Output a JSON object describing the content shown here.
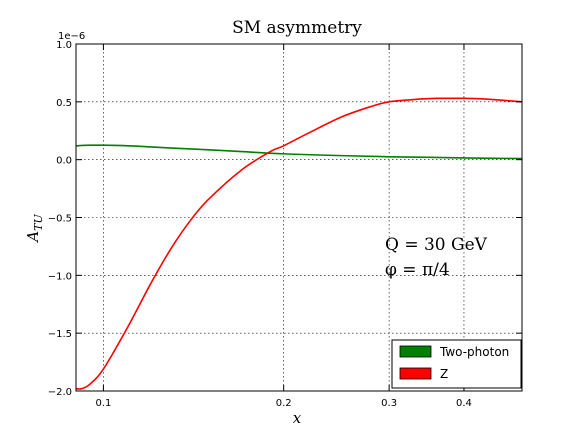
{
  "chart_data": {
    "type": "line",
    "title": "SM asymmetry",
    "xlabel": "x",
    "ylabel": "A_TU",
    "ylabel_main": "A",
    "ylabel_sub": "TU",
    "y_scale_label": "1e−6",
    "xscale": "log",
    "xlim": [
      0.09,
      0.5
    ],
    "ylim": [
      -2.0,
      1.0
    ],
    "grid": true,
    "legend_position": "lower-right",
    "x_ticks": [
      {
        "value": 0.1,
        "label": "0.1"
      },
      {
        "value": 0.2,
        "label": "0.2"
      },
      {
        "value": 0.3,
        "label": "0.3"
      },
      {
        "value": 0.4,
        "label": "0.4"
      }
    ],
    "y_ticks": [
      {
        "value": 1.0,
        "label": "1.0"
      },
      {
        "value": 0.5,
        "label": "0.5"
      },
      {
        "value": 0.0,
        "label": "0.0"
      },
      {
        "value": -0.5,
        "label": "−0.5"
      },
      {
        "value": -1.0,
        "label": "−1.0"
      },
      {
        "value": -1.5,
        "label": "−1.5"
      },
      {
        "value": -2.0,
        "label": "−2.0"
      }
    ],
    "annotations": [
      "Q = 30 GeV",
      "φ = π/4"
    ],
    "series": [
      {
        "name": "Two-photon",
        "color": "#008000",
        "x": [
          0.09,
          0.095,
          0.1,
          0.11,
          0.12,
          0.13,
          0.15,
          0.17,
          0.2,
          0.25,
          0.3,
          0.35,
          0.4,
          0.45,
          0.5
        ],
        "y": [
          0.12,
          0.125,
          0.125,
          0.12,
          0.11,
          0.1,
          0.085,
          0.07,
          0.05,
          0.035,
          0.025,
          0.02,
          0.015,
          0.012,
          0.01
        ]
      },
      {
        "name": "Z",
        "color": "#ff0000",
        "x": [
          0.09,
          0.092,
          0.095,
          0.1,
          0.11,
          0.12,
          0.13,
          0.14,
          0.15,
          0.17,
          0.19,
          0.2,
          0.22,
          0.25,
          0.28,
          0.3,
          0.33,
          0.36,
          0.38,
          0.4,
          0.43,
          0.46,
          0.5
        ],
        "y": [
          -1.98,
          -1.98,
          -1.94,
          -1.81,
          -1.44,
          -1.07,
          -0.76,
          -0.52,
          -0.34,
          -0.09,
          0.07,
          0.12,
          0.23,
          0.37,
          0.46,
          0.5,
          0.52,
          0.53,
          0.53,
          0.53,
          0.525,
          0.515,
          0.5
        ]
      }
    ]
  }
}
